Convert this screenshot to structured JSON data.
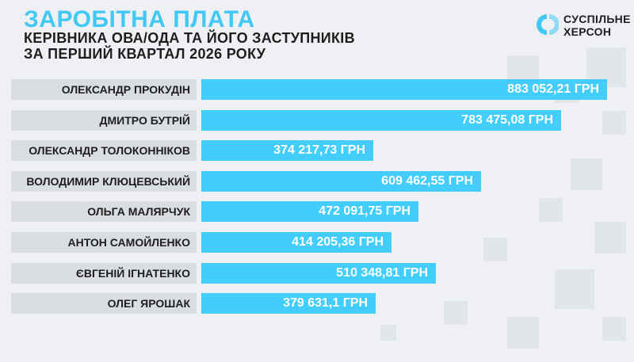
{
  "header": {
    "title": "ЗАРОБІТНА ПЛАТА",
    "subtitle_line1": "КЕРІВНИКА ОВА/ОДА ТА ЙОГО ЗАСТУПНИКІВ",
    "subtitle_line2": "ЗА ПЕРШИЙ КВАРТАЛ 2026 РОКУ"
  },
  "logo": {
    "line1": "СУСПІЛЬНЕ",
    "line2": "ХЕРСОН",
    "icon": "suspilne-logo-icon",
    "color": "#42c8f4"
  },
  "colors": {
    "accent": "#42cdfa",
    "label_bg": "#dadde2",
    "background": "#eef0f3",
    "text": "#1e1e1e"
  },
  "chart_data": {
    "type": "bar",
    "orientation": "horizontal",
    "categories": [
      "ОЛЕКСАНДР ПРОКУДІН",
      "ДМИТРО БУТРІЙ",
      "ОЛЕКСАНДР ТОЛОКОННІКОВ",
      "ВОЛОДИМИР КЛЮЦЕВСЬКИЙ",
      "ОЛЬГА МАЛЯРЧУК",
      "АНТОН САМОЙЛЕНКО",
      "ЄВГЕНІЙ ІГНАТЕНКО",
      "ОЛЕГ ЯРОШАК"
    ],
    "values": [
      883052.21,
      783475.08,
      374217.73,
      609462.55,
      472091.75,
      414205.36,
      510348.81,
      379631.1
    ],
    "value_labels": [
      "883 052,21 ГРН",
      "783 475,08 ГРН",
      "374 217,73 ГРН",
      "609 462,55 ГРН",
      "472 091,75 ГРН",
      "414 205,36 ГРН",
      "510 348,81 ГРН",
      "379 631,1 ГРН"
    ],
    "xlim": [
      0,
      883052.21
    ],
    "grid": false,
    "legend": "none"
  }
}
